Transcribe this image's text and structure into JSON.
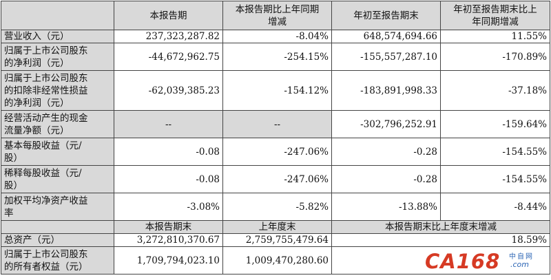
{
  "header1": [
    "本报告期",
    "本报告期比上年同期\n增减",
    "年初至报告期末",
    "年初至报告期末比上\n年同期增减"
  ],
  "rows1": [
    {
      "label": "营业收入（元）",
      "cells": [
        "237,323,287.82",
        "-8.04%",
        "648,574,694.66",
        "11.55%"
      ]
    },
    {
      "label": "归属于上市公司股东\n的净利润（元）",
      "cells": [
        "-44,672,962.75",
        "-254.15%",
        "-155,557,287.10",
        "-170.89%"
      ]
    },
    {
      "label": "归属于上市公司股东\n的扣除非经常性损益\n的净利润（元）",
      "cells": [
        "-62,039,385.23",
        "-154.12%",
        "-183,891,998.33",
        "-37.18%"
      ]
    },
    {
      "label": "经营活动产生的现金\n流量净额（元）",
      "cells": [
        "--",
        "--",
        "-302,796,252.91",
        "-159.64%"
      ]
    },
    {
      "label": "基本每股收益（元/\n股）",
      "cells": [
        "-0.08",
        "-247.06%",
        "-0.28",
        "-154.55%"
      ]
    },
    {
      "label": "稀释每股收益（元/\n股）",
      "cells": [
        "-0.08",
        "-247.06%",
        "-0.28",
        "-154.55%"
      ]
    },
    {
      "label": "加权平均净资产收益\n率",
      "cells": [
        "-3.08%",
        "-5.82%",
        "-13.88%",
        "-8.44%"
      ]
    }
  ],
  "header2": [
    "本报告期末",
    "上年度末",
    "本报告期末比上年度末增减"
  ],
  "rows2": [
    {
      "label": "总资产（元）",
      "cells": [
        "3,272,810,370.67",
        "2,759,755,479.64",
        "18.59%"
      ]
    },
    {
      "label": "归属于上市公司股东\n的所有者权益（元）",
      "cells": [
        "1,709,794,023.10",
        "1,009,470,280.60",
        ""
      ]
    }
  ],
  "watermark": {
    "logo": "CA168",
    "cn": "中自网",
    "domain": ".com"
  }
}
